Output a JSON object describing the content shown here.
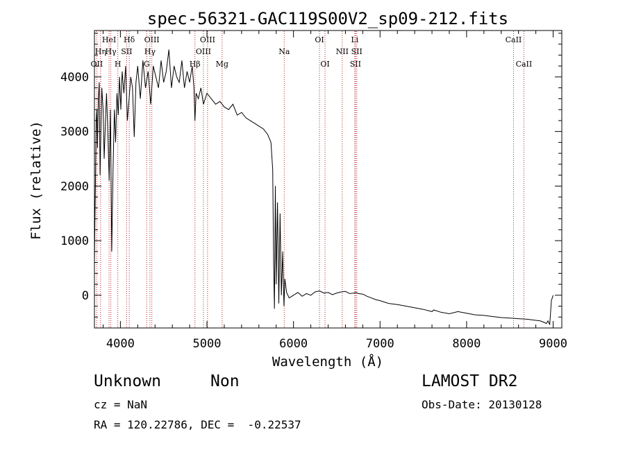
{
  "chart_data": {
    "type": "line",
    "title": "spec-56321-GAC119S00V2_sp09-212.fits",
    "xlabel": "Wavelength (Å)",
    "ylabel": "Flux (relative)",
    "xlim": [
      3700,
      9100
    ],
    "ylim": [
      -600,
      4850
    ],
    "xticks": [
      4000,
      5000,
      6000,
      7000,
      8000,
      9000
    ],
    "yticks": [
      0,
      1000,
      2000,
      3000,
      4000
    ],
    "grid": false,
    "series": [
      {
        "color": "#000000",
        "x": [
          3700,
          3705,
          3712,
          3720,
          3728,
          3735,
          3745,
          3755,
          3765,
          3775,
          3785,
          3800,
          3812,
          3825,
          3840,
          3855,
          3870,
          3885,
          3900,
          3915,
          3930,
          3945,
          3960,
          3975,
          3990,
          4005,
          4020,
          4040,
          4060,
          4080,
          4100,
          4120,
          4140,
          4160,
          4180,
          4200,
          4230,
          4260,
          4290,
          4320,
          4350,
          4380,
          4410,
          4440,
          4470,
          4500,
          4530,
          4560,
          4590,
          4620,
          4650,
          4680,
          4710,
          4740,
          4770,
          4800,
          4830,
          4850,
          4861,
          4875,
          4900,
          4930,
          4960,
          5000,
          5050,
          5100,
          5150,
          5200,
          5250,
          5300,
          5350,
          5400,
          5450,
          5500,
          5550,
          5600,
          5650,
          5700,
          5740,
          5760,
          5770,
          5780,
          5790,
          5800,
          5815,
          5830,
          5845,
          5860,
          5875,
          5890,
          5900,
          5920,
          5950,
          6000,
          6050,
          6100,
          6150,
          6200,
          6250,
          6300,
          6350,
          6400,
          6450,
          6500,
          6550,
          6600,
          6650,
          6700,
          6720,
          6750,
          6800,
          6850,
          6900,
          6950,
          7000,
          7100,
          7200,
          7300,
          7400,
          7500,
          7600,
          7620,
          7700,
          7800,
          7900,
          8000,
          8100,
          8200,
          8300,
          8400,
          8500,
          8600,
          8700,
          8800,
          8850,
          8900,
          8920,
          8940,
          8960,
          8980,
          9000
        ],
        "y": [
          600,
          1300,
          2100,
          3200,
          3400,
          2700,
          3600,
          3900,
          2200,
          3000,
          3800,
          3400,
          2500,
          3100,
          3700,
          3000,
          2100,
          3400,
          800,
          2300,
          3400,
          2800,
          3700,
          3300,
          4000,
          3400,
          4100,
          3700,
          4200,
          3200,
          3600,
          4000,
          3800,
          2900,
          3900,
          4200,
          3600,
          4300,
          3800,
          4100,
          3500,
          4200,
          4000,
          3800,
          4300,
          3900,
          4100,
          4500,
          3800,
          4200,
          4000,
          3900,
          4300,
          3800,
          4100,
          3900,
          4200,
          3800,
          3200,
          3700,
          3600,
          3800,
          3500,
          3700,
          3600,
          3500,
          3550,
          3450,
          3400,
          3500,
          3300,
          3350,
          3250,
          3200,
          3150,
          3100,
          3050,
          2950,
          2800,
          2300,
          600,
          -250,
          2000,
          200,
          1700,
          -150,
          1500,
          0,
          800,
          -200,
          300,
          50,
          -50,
          0,
          50,
          -20,
          30,
          0,
          60,
          80,
          40,
          50,
          10,
          40,
          60,
          70,
          30,
          40,
          50,
          30,
          20,
          -20,
          -50,
          -80,
          -100,
          -150,
          -170,
          -200,
          -230,
          -260,
          -300,
          -270,
          -310,
          -340,
          -300,
          -330,
          -360,
          -370,
          -390,
          -410,
          -420,
          -430,
          -440,
          -460,
          -470,
          -500,
          -520,
          -470,
          -540,
          -100,
          0
        ]
      }
    ],
    "annotation_color": "#b22222",
    "lines": [
      {
        "x": 3727,
        "label": "OII",
        "row": 2
      },
      {
        "x": 3771,
        "label": "Hη",
        "row": 1
      },
      {
        "x": 3869,
        "label": "HeI",
        "row": 0
      },
      {
        "x": 3889,
        "label": "Hγ",
        "row": 1
      },
      {
        "x": 3970,
        "label": "H",
        "row": 2
      },
      {
        "x": 4072,
        "label": "SII",
        "row": 1
      },
      {
        "x": 4102,
        "label": "Hδ",
        "row": 0
      },
      {
        "x": 4304,
        "label": "G",
        "row": 2
      },
      {
        "x": 4341,
        "label": "Hγ",
        "row": 1
      },
      {
        "x": 4363,
        "label": "OIII",
        "row": 0
      },
      {
        "x": 4861,
        "label": "Hβ",
        "row": 2
      },
      {
        "x": 4959,
        "label": "OIII",
        "row": 1
      },
      {
        "x": 5007,
        "label": "OIII",
        "row": 0
      },
      {
        "x": 5175,
        "label": "Mg",
        "row": 2
      },
      {
        "x": 5893,
        "label": "Na",
        "row": 1
      },
      {
        "x": 6300,
        "label": "OI",
        "row": 0
      },
      {
        "x": 6364,
        "label": "OI",
        "row": 2
      },
      {
        "x": 6563,
        "label": "NII",
        "row": 1
      },
      {
        "x": 6716,
        "label": "SII",
        "row": 2
      },
      {
        "x": 6708,
        "label": "Li",
        "row": 0
      },
      {
        "x": 6731,
        "label": "SII",
        "row": 1
      },
      {
        "x": 8542,
        "label": "CaII",
        "row": 0
      },
      {
        "x": 8662,
        "label": "CaII",
        "row": 2
      }
    ]
  },
  "info": {
    "object_class": "Unknown",
    "object_subclass": "Non",
    "survey": "LAMOST DR2",
    "cz": "cz = NaN",
    "obs_date": "Obs-Date: 20130128",
    "radec": "RA = 120.22786, DEC =  -0.22537"
  }
}
